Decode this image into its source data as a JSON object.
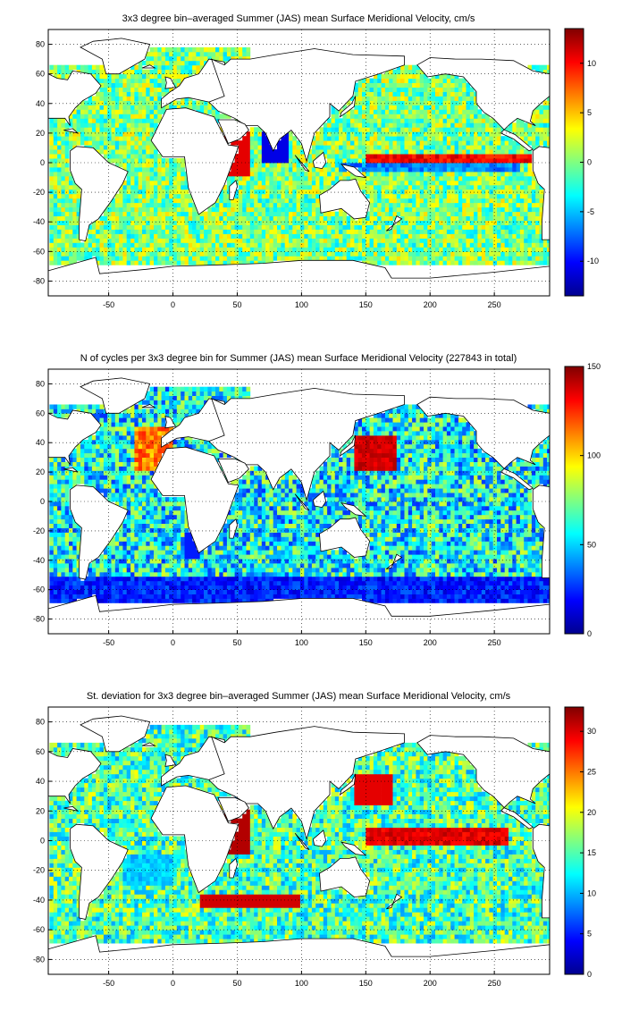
{
  "chart_data": [
    {
      "type": "heatmap",
      "title": "3x3 degree bin–averaged Summer (JAS) mean Surface Meridional Velocity, cm/s",
      "x_ticks": [
        "-50",
        "0",
        "50",
        "100",
        "150",
        "200",
        "250"
      ],
      "y_ticks": [
        "80",
        "60",
        "40",
        "20",
        "0",
        "-20",
        "-40",
        "-60",
        "-80"
      ],
      "xlim": [
        -97,
        293
      ],
      "ylim": [
        -90,
        90
      ],
      "colorbar_ticks": [
        "10",
        "5",
        "0",
        "-5",
        "-10"
      ],
      "colorbar_range": [
        -13.5,
        13.5
      ],
      "colormap": "jet",
      "grid": true
    },
    {
      "type": "heatmap",
      "title": "N of cycles per 3x3 degree bin for Summer (JAS) mean Surface Meridional Velocity (227843 in total)",
      "x_ticks": [
        "-50",
        "0",
        "50",
        "100",
        "150",
        "200",
        "250"
      ],
      "y_ticks": [
        "80",
        "60",
        "40",
        "20",
        "0",
        "-20",
        "-40",
        "-60",
        "-80"
      ],
      "xlim": [
        -97,
        293
      ],
      "ylim": [
        -90,
        90
      ],
      "colorbar_ticks": [
        "150",
        "100",
        "50",
        "0"
      ],
      "colorbar_range": [
        0,
        150
      ],
      "colormap": "jet",
      "grid": true
    },
    {
      "type": "heatmap",
      "title": "St. deviation for 3x3 degree bin–averaged Summer (JAS) mean Surface Meridional Velocity, cm/s",
      "x_ticks": [
        "-50",
        "0",
        "50",
        "100",
        "150",
        "200",
        "250"
      ],
      "y_ticks": [
        "80",
        "60",
        "40",
        "20",
        "0",
        "-20",
        "-40",
        "-60",
        "-80"
      ],
      "xlim": [
        -97,
        293
      ],
      "ylim": [
        -90,
        90
      ],
      "colorbar_ticks": [
        "30",
        "25",
        "20",
        "15",
        "10",
        "5",
        "0"
      ],
      "colorbar_range": [
        0,
        33
      ],
      "colormap": "jet",
      "grid": true
    }
  ]
}
